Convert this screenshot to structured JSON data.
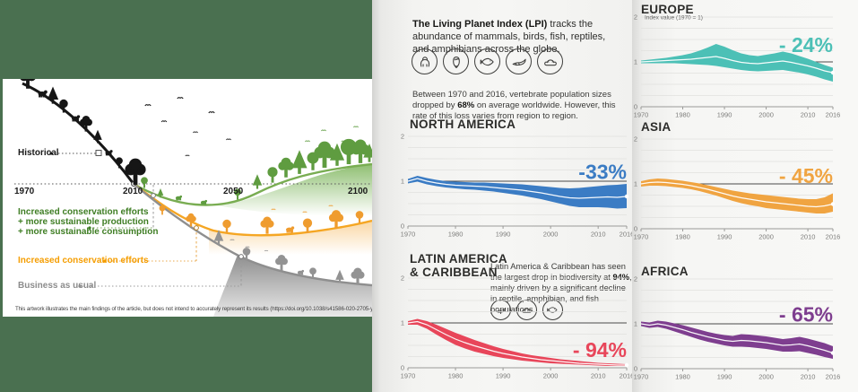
{
  "left_panel": {
    "background_color": "#4a7050",
    "historical_label": "Historical",
    "timeline_years": [
      "1970",
      "2010",
      "2050",
      "2100"
    ],
    "scenarios": [
      {
        "name": "conservation-plus-sustainability",
        "color": "#3e7d23",
        "lines": [
          "Increased conservation efforts",
          "+ more sustainable production",
          "+ more sustainable consumption"
        ]
      },
      {
        "name": "conservation-only",
        "color": "#f59d00",
        "lines": [
          "Increased conservation efforts"
        ]
      },
      {
        "name": "business-as-usual",
        "color": "#8c8c8c",
        "lines": [
          "Business as usual"
        ]
      }
    ],
    "caption": "This artwork illustrates the main findings of the article, but does not intend to accurately represent its results (https://doi.org/10.1038/s41586-020-2705-y)"
  },
  "intro": {
    "lead": {
      "bold": "The Living Planet Index (LPI)",
      "rest": " tracks the abundance of mammals, birds, fish, reptiles, and amphibians across the globe."
    },
    "icons": [
      "mammal",
      "bird",
      "fish",
      "reptile",
      "amphibian"
    ],
    "stats": {
      "pre": "Between 1970 and 2016, vertebrate population sizes dropped by ",
      "bold": "68%",
      "post": " on average worldwide. However, this rate of this loss varies from region to region."
    }
  },
  "latam_block": {
    "note": {
      "pre": "Latin America & Caribbean has seen the largest drop in biodiversity at ",
      "bold": "94%",
      "post": ", mainly driven by a significant decline in reptile, amphibian, and fish populations."
    },
    "icons": [
      "reptile",
      "amphibian",
      "fish"
    ]
  },
  "chart_data": [
    {
      "region": "north-america",
      "title": "NORTH AMERICA",
      "type": "area",
      "color": "#3b7cc4",
      "pct": {
        "text": "-33%",
        "y": 1.05
      },
      "ylim": [
        0,
        2
      ],
      "yticks": [
        0,
        1,
        2
      ],
      "grid": true,
      "ylabel": "",
      "xticks": [
        1970,
        1980,
        1990,
        2000,
        2010,
        2016
      ],
      "years": [
        1970,
        1972,
        1974,
        1976,
        1978,
        1980,
        1982,
        1984,
        1986,
        1988,
        1990,
        1992,
        1994,
        1996,
        1998,
        2000,
        2002,
        2004,
        2006,
        2008,
        2010,
        2012,
        2014,
        2016
      ],
      "center": [
        1.0,
        1.06,
        1.0,
        0.96,
        0.93,
        0.91,
        0.9,
        0.89,
        0.88,
        0.86,
        0.84,
        0.82,
        0.8,
        0.77,
        0.74,
        0.7,
        0.66,
        0.63,
        0.62,
        0.63,
        0.64,
        0.65,
        0.64,
        0.66
      ],
      "upper": [
        1.05,
        1.12,
        1.07,
        1.03,
        1.0,
        0.99,
        0.98,
        0.97,
        0.97,
        0.96,
        0.95,
        0.94,
        0.93,
        0.91,
        0.89,
        0.87,
        0.85,
        0.84,
        0.85,
        0.87,
        0.89,
        0.91,
        0.92,
        0.94
      ],
      "lower": [
        0.95,
        0.99,
        0.93,
        0.89,
        0.86,
        0.84,
        0.82,
        0.81,
        0.79,
        0.77,
        0.74,
        0.71,
        0.68,
        0.64,
        0.6,
        0.55,
        0.5,
        0.45,
        0.42,
        0.42,
        0.42,
        0.41,
        0.39,
        0.4
      ]
    },
    {
      "region": "latin-america-caribbean",
      "title": "LATIN AMERICA & CARIBBEAN",
      "title_lines": [
        "LATIN AMERICA",
        "& CARIBBEAN"
      ],
      "type": "area",
      "color": "#e8465a",
      "pct": {
        "text": "- 94%",
        "y": 0.24
      },
      "ylim": [
        0,
        2
      ],
      "yticks": [
        0,
        1,
        2
      ],
      "grid": true,
      "ylabel": "",
      "xticks": [
        1970,
        1980,
        1990,
        2000,
        2010,
        2016
      ],
      "years": [
        1970,
        1972,
        1974,
        1976,
        1978,
        1980,
        1982,
        1984,
        1986,
        1988,
        1990,
        1992,
        1994,
        1996,
        1998,
        2000,
        2002,
        2004,
        2006,
        2008,
        2010,
        2012,
        2014,
        2016
      ],
      "center": [
        1.0,
        1.03,
        0.96,
        0.85,
        0.74,
        0.64,
        0.56,
        0.49,
        0.43,
        0.37,
        0.32,
        0.28,
        0.24,
        0.21,
        0.18,
        0.16,
        0.14,
        0.12,
        0.1,
        0.09,
        0.08,
        0.07,
        0.06,
        0.06
      ],
      "upper": [
        1.04,
        1.09,
        1.04,
        0.96,
        0.87,
        0.78,
        0.7,
        0.62,
        0.55,
        0.48,
        0.42,
        0.37,
        0.32,
        0.28,
        0.25,
        0.22,
        0.19,
        0.17,
        0.15,
        0.13,
        0.11,
        0.1,
        0.09,
        0.08
      ],
      "lower": [
        0.96,
        0.96,
        0.87,
        0.74,
        0.62,
        0.51,
        0.43,
        0.36,
        0.31,
        0.26,
        0.22,
        0.19,
        0.16,
        0.14,
        0.12,
        0.1,
        0.09,
        0.08,
        0.07,
        0.06,
        0.05,
        0.04,
        0.04,
        0.04
      ]
    },
    {
      "region": "europe",
      "title": "EUROPE",
      "type": "area",
      "color": "#4cc0b6",
      "pct": {
        "text": "- 24%",
        "y": 1.22
      },
      "ylim": [
        0,
        2
      ],
      "yticks": [
        0,
        1,
        2
      ],
      "grid": true,
      "ylabel": "Index value (1970 = 1)",
      "xticks": [
        1970,
        1980,
        1990,
        2000,
        2010,
        2016
      ],
      "years": [
        1970,
        1972,
        1974,
        1976,
        1978,
        1980,
        1982,
        1984,
        1986,
        1988,
        1990,
        1992,
        1994,
        1996,
        1998,
        2000,
        2002,
        2004,
        2006,
        2008,
        2010,
        2012,
        2014,
        2016
      ],
      "center": [
        1.0,
        1.01,
        1.02,
        1.03,
        1.04,
        1.05,
        1.06,
        1.08,
        1.1,
        1.12,
        1.08,
        1.03,
        0.99,
        0.97,
        0.96,
        0.98,
        1.0,
        1.02,
        0.99,
        0.95,
        0.91,
        0.86,
        0.8,
        0.76
      ],
      "upper": [
        1.03,
        1.05,
        1.07,
        1.09,
        1.12,
        1.15,
        1.19,
        1.25,
        1.32,
        1.4,
        1.34,
        1.26,
        1.19,
        1.15,
        1.13,
        1.16,
        1.19,
        1.23,
        1.19,
        1.13,
        1.07,
        1.0,
        0.93,
        0.87
      ],
      "lower": [
        0.97,
        0.97,
        0.97,
        0.97,
        0.97,
        0.96,
        0.95,
        0.94,
        0.93,
        0.91,
        0.88,
        0.85,
        0.82,
        0.8,
        0.79,
        0.8,
        0.81,
        0.82,
        0.79,
        0.76,
        0.72,
        0.67,
        0.61,
        0.56
      ]
    },
    {
      "region": "asia",
      "title": "ASIA",
      "type": "area",
      "color": "#f0a441",
      "pct": {
        "text": "- 45%",
        "y": 1.02
      },
      "ylim": [
        0,
        2
      ],
      "yticks": [
        0,
        1,
        2
      ],
      "grid": true,
      "ylabel": "",
      "xticks": [
        1970,
        1980,
        1990,
        2000,
        2010,
        2016
      ],
      "years": [
        1970,
        1972,
        1974,
        1976,
        1978,
        1980,
        1982,
        1984,
        1986,
        1988,
        1990,
        1992,
        1994,
        1996,
        1998,
        2000,
        2002,
        2004,
        2006,
        2008,
        2010,
        2012,
        2014,
        2016
      ],
      "center": [
        1.0,
        1.03,
        1.04,
        1.03,
        1.01,
        0.99,
        0.96,
        0.92,
        0.88,
        0.83,
        0.78,
        0.73,
        0.69,
        0.66,
        0.63,
        0.6,
        0.58,
        0.56,
        0.54,
        0.52,
        0.5,
        0.49,
        0.51,
        0.55
      ],
      "upper": [
        1.06,
        1.1,
        1.12,
        1.11,
        1.09,
        1.07,
        1.04,
        1.01,
        0.97,
        0.93,
        0.89,
        0.85,
        0.82,
        0.79,
        0.77,
        0.75,
        0.73,
        0.71,
        0.69,
        0.67,
        0.66,
        0.66,
        0.7,
        0.79
      ],
      "lower": [
        0.94,
        0.96,
        0.96,
        0.95,
        0.93,
        0.91,
        0.88,
        0.84,
        0.79,
        0.74,
        0.68,
        0.62,
        0.57,
        0.53,
        0.5,
        0.46,
        0.44,
        0.42,
        0.4,
        0.38,
        0.36,
        0.34,
        0.34,
        0.38
      ]
    },
    {
      "region": "africa",
      "title": "AFRICA",
      "type": "area",
      "color": "#7e3e8f",
      "pct": {
        "text": "- 65%",
        "y": 1.05
      },
      "ylim": [
        0,
        2
      ],
      "yticks": [
        0,
        1,
        2
      ],
      "grid": true,
      "ylabel": "",
      "xticks": [
        1970,
        1980,
        1990,
        2000,
        2010,
        2016
      ],
      "years": [
        1970,
        1972,
        1974,
        1976,
        1978,
        1980,
        1982,
        1984,
        1986,
        1988,
        1990,
        1992,
        1994,
        1996,
        1998,
        2000,
        2002,
        2004,
        2006,
        2008,
        2010,
        2012,
        2014,
        2016
      ],
      "center": [
        1.0,
        0.97,
        1.0,
        0.97,
        0.92,
        0.87,
        0.81,
        0.76,
        0.71,
        0.67,
        0.63,
        0.61,
        0.63,
        0.62,
        0.6,
        0.58,
        0.55,
        0.52,
        0.53,
        0.55,
        0.51,
        0.46,
        0.41,
        0.35
      ],
      "upper": [
        1.05,
        1.03,
        1.07,
        1.05,
        1.01,
        0.97,
        0.92,
        0.87,
        0.82,
        0.78,
        0.75,
        0.73,
        0.77,
        0.76,
        0.74,
        0.72,
        0.69,
        0.66,
        0.68,
        0.71,
        0.67,
        0.62,
        0.57,
        0.5
      ],
      "lower": [
        0.95,
        0.91,
        0.93,
        0.89,
        0.83,
        0.77,
        0.71,
        0.65,
        0.6,
        0.56,
        0.52,
        0.49,
        0.49,
        0.48,
        0.46,
        0.44,
        0.41,
        0.38,
        0.38,
        0.39,
        0.35,
        0.31,
        0.26,
        0.22
      ]
    }
  ]
}
